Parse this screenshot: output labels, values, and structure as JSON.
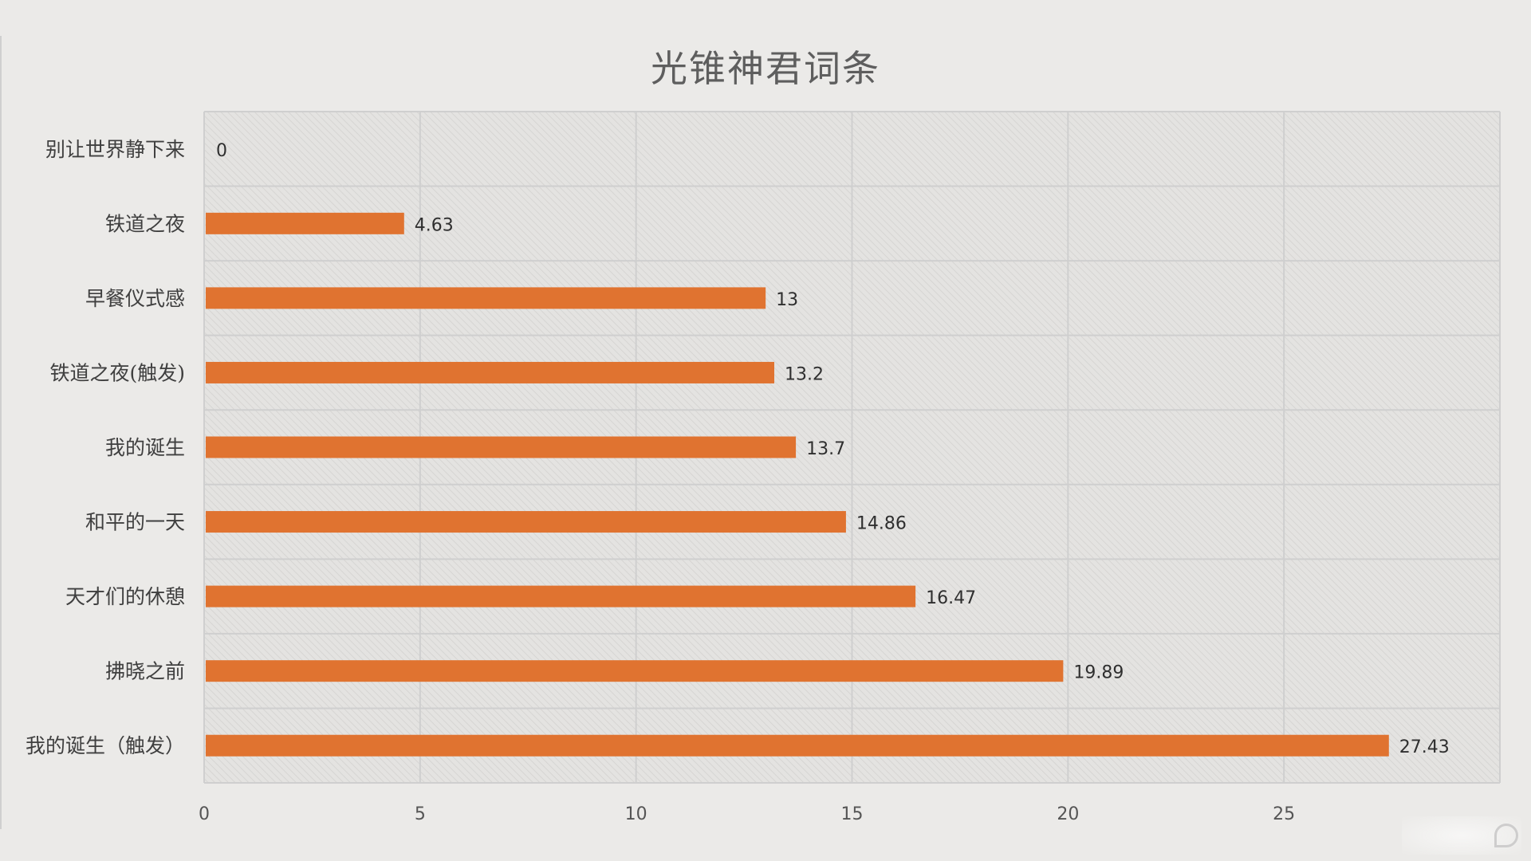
{
  "chart_data": {
    "type": "bar",
    "orientation": "horizontal",
    "title": "光锥神君词条",
    "categories": [
      "别让世界静下来",
      "铁道之夜",
      "早餐仪式感",
      "铁道之夜(触发)",
      "我的诞生",
      "和平的一天",
      "天才们的休憩",
      "拂晓之前",
      "我的诞生（触发）"
    ],
    "values": [
      0,
      4.63,
      13,
      13.2,
      13.7,
      14.86,
      16.47,
      19.89,
      27.43
    ],
    "value_labels": [
      "0",
      "4.63",
      "13",
      "13.2",
      "13.7",
      "14.86",
      "16.47",
      "19.89",
      "27.43"
    ],
    "x_ticks": [
      "0",
      "5",
      "10",
      "15",
      "20",
      "25"
    ],
    "xlim": [
      0,
      30
    ],
    "xlabel": "",
    "ylabel": "",
    "grid": true,
    "bar_color": "#e07330",
    "plot_background": "#e4e3e1",
    "grid_color": "#cfcfcf"
  },
  "watermark": {
    "icon": "jiuyou-logo-icon",
    "text": "九游"
  }
}
